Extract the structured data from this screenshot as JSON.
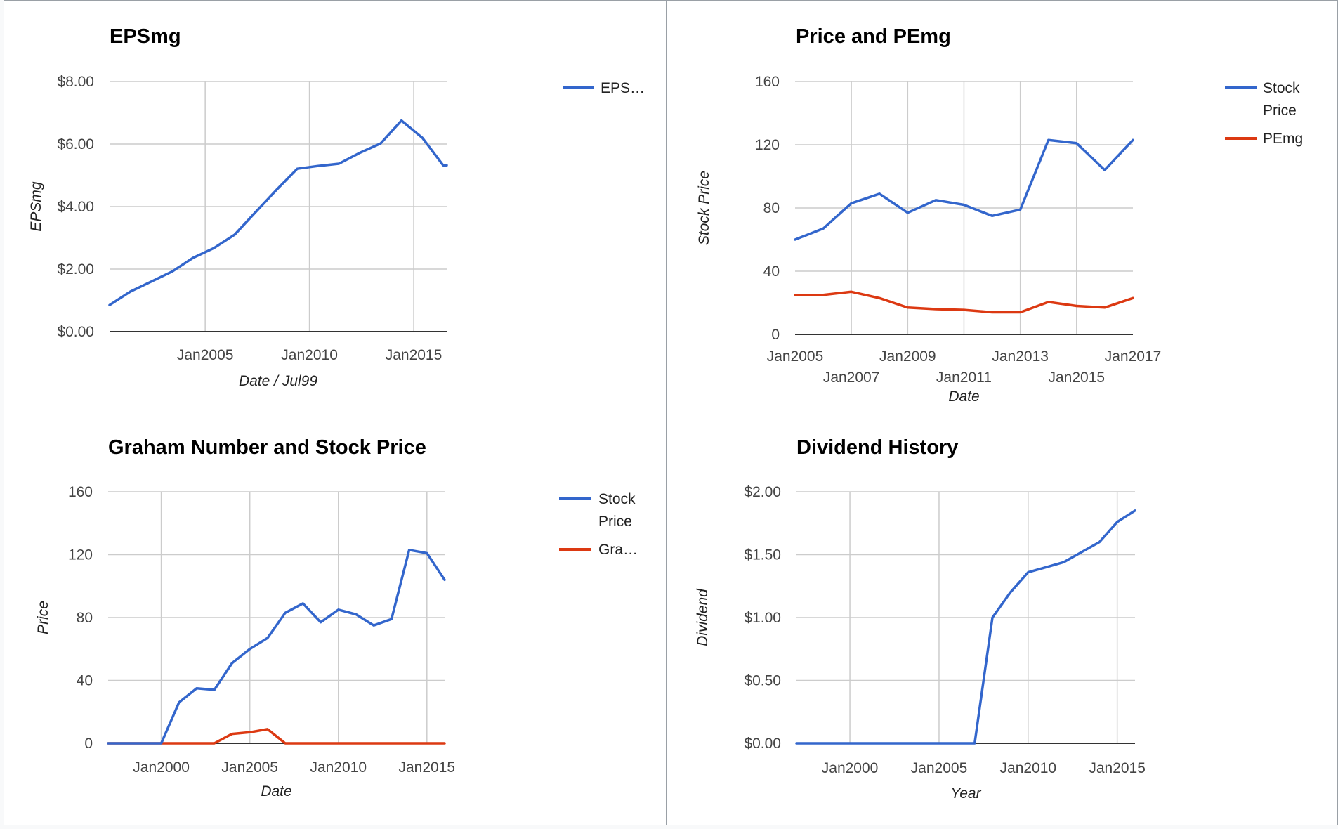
{
  "chart_data": [
    {
      "type": "line",
      "title": "EPSmg",
      "xlabel": "Date / Jul99",
      "ylabel": "EPSmg",
      "x_type": "date",
      "xlim": [
        "2000-06-01",
        "2016-08-01"
      ],
      "ylim": [
        0,
        8
      ],
      "yticks": [
        0,
        2,
        4,
        6,
        8
      ],
      "ytick_labels": [
        "$0.00",
        "$2.00",
        "$4.00",
        "$6.00",
        "$8.00"
      ],
      "xticks": [
        "2005-01-01",
        "2010-01-01",
        "2015-01-01"
      ],
      "xtick_labels": [
        "Jan2005",
        "Jan2010",
        "Jan2015"
      ],
      "x_grid_lines": [
        "2005-01-01",
        "2010-01-01",
        "2015-01-01"
      ],
      "legend_position": "right",
      "series": [
        {
          "name": "EPS…",
          "color": "#3366cc",
          "x": [
            "2000-06-01",
            "2001-06-01",
            "2002-06-01",
            "2003-06-01",
            "2004-06-01",
            "2005-06-01",
            "2006-06-01",
            "2007-06-01",
            "2008-06-01",
            "2009-06-01",
            "2010-06-01",
            "2011-06-01",
            "2012-06-01",
            "2013-06-01",
            "2014-06-01",
            "2015-06-01",
            "2016-06-01",
            "2016-08-01"
          ],
          "values": [
            0.85,
            1.28,
            1.6,
            1.92,
            2.36,
            2.67,
            3.1,
            3.82,
            4.53,
            5.21,
            5.3,
            5.37,
            5.72,
            6.02,
            6.75,
            6.2,
            5.32,
            5.32
          ]
        }
      ]
    },
    {
      "type": "line",
      "title": "Price and PEmg",
      "xlabel": "Date",
      "ylabel": "Stock Price",
      "x_type": "date",
      "xlim": [
        "2005-01-01",
        "2017-01-01"
      ],
      "ylim": [
        0,
        160
      ],
      "yticks": [
        0,
        40,
        80,
        120,
        160
      ],
      "ytick_labels": [
        "0",
        "40",
        "80",
        "120",
        "160"
      ],
      "xticks": [
        "2005-01-01",
        "2007-01-01",
        "2009-01-01",
        "2011-01-01",
        "2013-01-01",
        "2015-01-01",
        "2017-01-01"
      ],
      "xtick_labels": [
        "Jan2005",
        "Jan2007",
        "Jan2009",
        "Jan2011",
        "Jan2013",
        "Jan2015",
        "Jan2017"
      ],
      "x_grid_lines": [
        "2007-01-01",
        "2009-01-01",
        "2011-01-01",
        "2013-01-01",
        "2015-01-01"
      ],
      "legend_position": "right",
      "series": [
        {
          "name": "Stock Price",
          "color": "#3366cc",
          "x": [
            "2005-01-01",
            "2006-01-01",
            "2007-01-01",
            "2008-01-01",
            "2009-01-01",
            "2010-01-01",
            "2011-01-01",
            "2012-01-01",
            "2013-01-01",
            "2014-01-01",
            "2015-01-01",
            "2016-01-01",
            "2017-01-01"
          ],
          "values": [
            60,
            67,
            83,
            89,
            77,
            85,
            82,
            75,
            79,
            123,
            121,
            104,
            123
          ]
        },
        {
          "name": "PEmg",
          "color": "#dc3912",
          "x": [
            "2005-01-01",
            "2006-01-01",
            "2007-01-01",
            "2008-01-01",
            "2009-01-01",
            "2010-01-01",
            "2011-01-01",
            "2012-01-01",
            "2013-01-01",
            "2014-01-01",
            "2015-01-01",
            "2016-01-01",
            "2017-01-01"
          ],
          "values": [
            25,
            25,
            27,
            23,
            17,
            16,
            15.5,
            14,
            14,
            20.5,
            18,
            17,
            23
          ]
        }
      ]
    },
    {
      "type": "line",
      "title": "Graham Number and Stock Price",
      "xlabel": "Date",
      "ylabel": "Price",
      "x_type": "date",
      "xlim": [
        "1997-01-01",
        "2016-01-01"
      ],
      "ylim": [
        0,
        160
      ],
      "yticks": [
        0,
        40,
        80,
        120,
        160
      ],
      "ytick_labels": [
        "0",
        "40",
        "80",
        "120",
        "160"
      ],
      "xticks": [
        "2000-01-01",
        "2005-01-01",
        "2010-01-01",
        "2015-01-01"
      ],
      "xtick_labels": [
        "Jan2000",
        "Jan2005",
        "Jan2010",
        "Jan2015"
      ],
      "x_grid_lines": [
        "2000-01-01",
        "2005-01-01",
        "2010-01-01",
        "2015-01-01"
      ],
      "legend_position": "right",
      "series": [
        {
          "name": "Stock Price",
          "color": "#3366cc",
          "x": [
            "1997-01-01",
            "1998-01-01",
            "1999-01-01",
            "2000-01-01",
            "2001-01-01",
            "2002-01-01",
            "2003-01-01",
            "2004-01-01",
            "2005-01-01",
            "2006-01-01",
            "2007-01-01",
            "2008-01-01",
            "2009-01-01",
            "2010-01-01",
            "2011-01-01",
            "2012-01-01",
            "2013-01-01",
            "2014-01-01",
            "2015-01-01",
            "2016-01-01"
          ],
          "values": [
            0,
            0,
            0,
            0,
            26,
            35,
            34,
            51,
            60,
            67,
            83,
            89,
            77,
            85,
            82,
            75,
            79,
            123,
            121,
            104
          ]
        },
        {
          "name": "Gra…",
          "color": "#dc3912",
          "x": [
            "1997-01-01",
            "1998-01-01",
            "1999-01-01",
            "2000-01-01",
            "2001-01-01",
            "2002-01-01",
            "2003-01-01",
            "2004-01-01",
            "2005-01-01",
            "2006-01-01",
            "2007-01-01",
            "2008-01-01",
            "2009-01-01",
            "2010-01-01",
            "2011-01-01",
            "2012-01-01",
            "2013-01-01",
            "2014-01-01",
            "2015-01-01",
            "2016-01-01"
          ],
          "values": [
            0,
            0,
            0,
            0,
            0,
            0,
            0,
            6,
            7,
            9,
            0,
            0,
            0,
            0,
            0,
            0,
            0,
            0,
            0,
            0
          ]
        }
      ]
    },
    {
      "type": "line",
      "title": "Dividend History",
      "xlabel": "Year",
      "ylabel": "Dividend",
      "x_type": "date",
      "xlim": [
        "1997-01-01",
        "2016-01-01"
      ],
      "ylim": [
        0,
        2
      ],
      "yticks": [
        0,
        0.5,
        1,
        1.5,
        2
      ],
      "ytick_labels": [
        "$0.00",
        "$0.50",
        "$1.00",
        "$1.50",
        "$2.00"
      ],
      "xticks": [
        "2000-01-01",
        "2005-01-01",
        "2010-01-01",
        "2015-01-01"
      ],
      "xtick_labels": [
        "Jan2000",
        "Jan2005",
        "Jan2010",
        "Jan2015"
      ],
      "x_grid_lines": [
        "2000-01-01",
        "2005-01-01",
        "2010-01-01",
        "2015-01-01"
      ],
      "legend_position": "none",
      "series": [
        {
          "color": "#3366cc",
          "x": [
            "1997-01-01",
            "1998-01-01",
            "1999-01-01",
            "2000-01-01",
            "2001-01-01",
            "2002-01-01",
            "2003-01-01",
            "2004-01-01",
            "2005-01-01",
            "2006-01-01",
            "2007-01-01",
            "2008-01-01",
            "2009-01-01",
            "2010-01-01",
            "2011-01-01",
            "2012-01-01",
            "2013-01-01",
            "2014-01-01",
            "2015-01-01",
            "2016-01-01"
          ],
          "values": [
            0,
            0,
            0,
            0,
            0,
            0,
            0,
            0,
            0,
            0,
            0,
            1.0,
            1.2,
            1.36,
            1.4,
            1.44,
            1.52,
            1.6,
            1.76,
            1.85
          ]
        }
      ]
    }
  ]
}
